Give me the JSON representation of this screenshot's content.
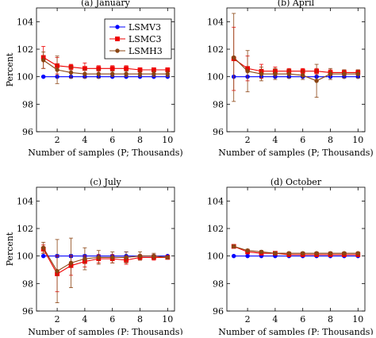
{
  "chart_data": [
    {
      "type": "line",
      "title": "(a) January",
      "xlabel": "Number of samples (P; Thousands)",
      "ylabel": "Percent",
      "xlim": [
        0.5,
        10.5
      ],
      "ylim": [
        96,
        105
      ],
      "xticks": [
        2,
        4,
        6,
        8,
        10
      ],
      "yticks": [
        96,
        98,
        100,
        102,
        104
      ],
      "legend": "top-right",
      "x": [
        1,
        2,
        3,
        4,
        5,
        6,
        7,
        8,
        9,
        10
      ],
      "series": [
        {
          "name": "LSMV3",
          "color": "#0000ff",
          "marker": "circle",
          "values": [
            100.0,
            100.0,
            100.0,
            100.0,
            100.0,
            100.0,
            100.0,
            100.0,
            100.0,
            100.0
          ],
          "errors": [
            0.05,
            0.05,
            0.05,
            0.05,
            0.05,
            0.05,
            0.05,
            0.05,
            0.05,
            0.05
          ]
        },
        {
          "name": "LSMC3",
          "color": "#ee0000",
          "marker": "square",
          "values": [
            101.4,
            100.8,
            100.7,
            100.6,
            100.6,
            100.6,
            100.6,
            100.5,
            100.5,
            100.5
          ],
          "errors": [
            0.8,
            0.6,
            0.2,
            0.4,
            0.2,
            0.2,
            0.2,
            0.15,
            0.15,
            0.15
          ]
        },
        {
          "name": "LSMH3",
          "color": "#8b4513",
          "marker": "circle",
          "values": [
            101.2,
            100.5,
            100.3,
            100.2,
            100.2,
            100.2,
            100.2,
            100.2,
            100.2,
            100.2
          ],
          "errors": [
            0.6,
            1.0,
            0.4,
            0.3,
            0.3,
            0.2,
            0.2,
            0.2,
            0.2,
            0.2
          ]
        }
      ]
    },
    {
      "type": "line",
      "title": "(b) April",
      "xlabel": "Number of samples (P; Thousands)",
      "ylabel": "",
      "xlim": [
        0.5,
        10.5
      ],
      "ylim": [
        96,
        105
      ],
      "xticks": [
        2,
        4,
        6,
        8,
        10
      ],
      "yticks": [
        96,
        98,
        100,
        102,
        104
      ],
      "x": [
        1,
        2,
        3,
        4,
        5,
        6,
        7,
        8,
        9,
        10
      ],
      "series": [
        {
          "name": "LSMV3",
          "color": "#0000ff",
          "marker": "circle",
          "values": [
            100.0,
            100.0,
            100.0,
            100.0,
            100.0,
            100.0,
            100.0,
            100.0,
            100.0,
            100.0
          ],
          "errors": [
            0.05,
            0.05,
            0.05,
            0.05,
            0.05,
            0.05,
            0.05,
            0.05,
            0.05,
            0.05
          ]
        },
        {
          "name": "LSMC3",
          "color": "#ee0000",
          "marker": "square",
          "values": [
            101.3,
            100.6,
            100.4,
            100.4,
            100.4,
            100.4,
            100.4,
            100.3,
            100.3,
            100.3
          ],
          "errors": [
            2.3,
            0.9,
            0.5,
            0.3,
            0.2,
            0.2,
            0.2,
            0.2,
            0.2,
            0.2
          ]
        },
        {
          "name": "LSMH3",
          "color": "#8b4513",
          "marker": "circle",
          "values": [
            101.4,
            100.4,
            100.2,
            100.2,
            100.2,
            100.1,
            99.7,
            100.2,
            100.2,
            100.2
          ],
          "errors": [
            3.2,
            1.5,
            0.5,
            0.4,
            0.3,
            0.3,
            1.2,
            0.4,
            0.3,
            0.3
          ]
        }
      ]
    },
    {
      "type": "line",
      "title": "(c) July",
      "xlabel": "Number of samples (P; Thousands)",
      "ylabel": "Percent",
      "xlim": [
        0.5,
        10.5
      ],
      "ylim": [
        96,
        105
      ],
      "xticks": [
        2,
        4,
        6,
        8,
        10
      ],
      "yticks": [
        96,
        98,
        100,
        102,
        104
      ],
      "x": [
        1,
        2,
        3,
        4,
        5,
        6,
        7,
        8,
        9,
        10
      ],
      "series": [
        {
          "name": "LSMV3",
          "color": "#0000ff",
          "marker": "circle",
          "values": [
            100.0,
            100.0,
            100.0,
            100.0,
            100.0,
            100.0,
            100.0,
            100.0,
            100.0,
            100.0
          ],
          "errors": [
            0.05,
            0.1,
            0.1,
            0.1,
            0.1,
            0.1,
            0.3,
            0.1,
            0.1,
            0.05
          ]
        },
        {
          "name": "LSMC3",
          "color": "#ee0000",
          "marker": "square",
          "values": [
            100.5,
            98.7,
            99.3,
            99.6,
            99.8,
            99.8,
            99.7,
            99.9,
            99.9,
            99.9
          ],
          "errors": [
            0.3,
            1.3,
            0.7,
            0.4,
            0.3,
            0.3,
            0.3,
            0.2,
            0.2,
            0.1
          ]
        },
        {
          "name": "LSMH3",
          "color": "#8b4513",
          "marker": "circle",
          "values": [
            100.6,
            98.9,
            99.5,
            99.8,
            99.9,
            99.9,
            99.9,
            100.0,
            100.0,
            99.9
          ],
          "errors": [
            0.4,
            2.3,
            1.8,
            0.8,
            0.5,
            0.4,
            0.4,
            0.3,
            0.2,
            0.1
          ]
        }
      ]
    },
    {
      "type": "line",
      "title": "(d) October",
      "xlabel": "Number of samples (P; Thousands)",
      "ylabel": "",
      "xlim": [
        0.5,
        10.5
      ],
      "ylim": [
        96,
        105
      ],
      "xticks": [
        2,
        4,
        6,
        8,
        10
      ],
      "yticks": [
        96,
        98,
        100,
        102,
        104
      ],
      "x": [
        1,
        2,
        3,
        4,
        5,
        6,
        7,
        8,
        9,
        10
      ],
      "series": [
        {
          "name": "LSMV3",
          "color": "#0000ff",
          "marker": "circle",
          "values": [
            100.0,
            100.0,
            100.0,
            100.0,
            100.0,
            100.0,
            100.0,
            100.0,
            100.0,
            100.0
          ],
          "errors": [
            0.05,
            0.05,
            0.05,
            0.05,
            0.05,
            0.05,
            0.05,
            0.05,
            0.05,
            0.05
          ]
        },
        {
          "name": "LSMC3",
          "color": "#ee0000",
          "marker": "square",
          "values": [
            100.7,
            100.3,
            100.2,
            100.2,
            100.1,
            100.1,
            100.1,
            100.1,
            100.1,
            100.1
          ],
          "errors": [
            0.1,
            0.1,
            0.1,
            0.1,
            0.1,
            0.1,
            0.1,
            0.1,
            0.1,
            0.1
          ]
        },
        {
          "name": "LSMH3",
          "color": "#8b4513",
          "marker": "circle",
          "values": [
            100.7,
            100.4,
            100.3,
            100.2,
            100.2,
            100.2,
            100.2,
            100.2,
            100.2,
            100.2
          ],
          "errors": [
            0.1,
            0.1,
            0.1,
            0.1,
            0.1,
            0.1,
            0.1,
            0.1,
            0.1,
            0.1
          ]
        }
      ]
    }
  ]
}
